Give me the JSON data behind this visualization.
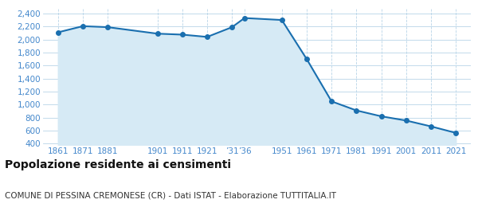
{
  "years": [
    1861,
    1871,
    1881,
    1901,
    1911,
    1921,
    1931,
    1936,
    1951,
    1961,
    1971,
    1981,
    1991,
    2001,
    2011,
    2021
  ],
  "population": [
    2110,
    2205,
    2190,
    2090,
    2075,
    2040,
    2190,
    2330,
    2300,
    1700,
    1050,
    910,
    820,
    755,
    665,
    565
  ],
  "line_color": "#1a6faf",
  "marker_color": "#1a6faf",
  "fill_color": "#d6eaf5",
  "background_color": "#ffffff",
  "grid_color": "#b8d4e8",
  "title": "Popolazione residente ai censimenti",
  "subtitle": "COMUNE DI PESSINA CREMONESE (CR) - Dati ISTAT - Elaborazione TUTTITALIA.IT",
  "title_fontsize": 10,
  "subtitle_fontsize": 7.5,
  "ylabel_ticks": [
    400,
    600,
    800,
    1000,
    1200,
    1400,
    1600,
    1800,
    2000,
    2200,
    2400
  ],
  "ylim": [
    380,
    2470
  ],
  "xlim": [
    1855,
    2027
  ],
  "tick_color": "#4488cc",
  "tick_fontsize": 7.5,
  "x_tick_positions": [
    1861,
    1871,
    1881,
    1901,
    1911,
    1921,
    1931,
    1936,
    1951,
    1961,
    1971,
    1981,
    1991,
    2001,
    2011,
    2021
  ],
  "x_tick_labels": [
    "1861",
    "1871",
    "1881",
    "1901",
    "1911",
    "1921",
    "’31",
    "’36",
    "1951",
    "1961",
    "1971",
    "1981",
    "1991",
    "2001",
    "2011",
    "2021"
  ]
}
